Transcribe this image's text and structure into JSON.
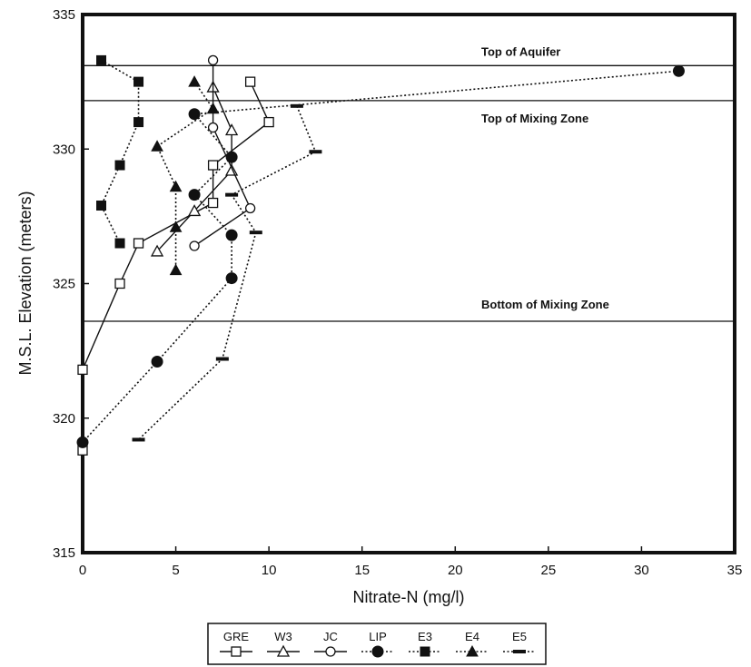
{
  "chart_data": {
    "type": "scatter",
    "title": "",
    "xlabel": "Nitrate-N (mg/l)",
    "ylabel": "M.S.L. Elevation (meters)",
    "xlim": [
      0,
      35
    ],
    "ylim": [
      315,
      335
    ],
    "xticks": [
      "0",
      "5",
      "10",
      "15",
      "20",
      "25",
      "30",
      "35"
    ],
    "yticks": [
      "315",
      "320",
      "325",
      "330",
      "335"
    ],
    "grid": false,
    "legend_position": "bottom-center",
    "reference_lines": [
      {
        "label": "Top of Aquifer",
        "y": 333.1
      },
      {
        "label": "Top of Mixing Zone",
        "y": 331.8
      },
      {
        "label": "Bottom of Mixing Zone",
        "y": 323.6
      }
    ],
    "series": [
      {
        "name": "GRE",
        "marker": "open-square",
        "line": "solid",
        "points": [
          [
            9,
            332.5
          ],
          [
            10,
            331.0
          ],
          [
            7,
            329.4
          ],
          [
            7,
            328.0
          ],
          [
            3,
            326.5
          ],
          [
            2,
            325.0
          ],
          [
            0,
            321.8
          ],
          [
            0,
            318.8
          ]
        ]
      },
      {
        "name": "W3",
        "marker": "open-triangle",
        "line": "solid",
        "points": [
          [
            7,
            332.3
          ],
          [
            8,
            330.7
          ],
          [
            8,
            329.2
          ],
          [
            6,
            327.7
          ],
          [
            4,
            326.2
          ]
        ]
      },
      {
        "name": "JC",
        "marker": "open-circle",
        "line": "solid",
        "points": [
          [
            7,
            333.3
          ],
          [
            7,
            330.8
          ],
          [
            9,
            327.8
          ],
          [
            6,
            326.4
          ]
        ]
      },
      {
        "name": "LIP",
        "marker": "filled-circle",
        "line": "dotted",
        "points": [
          [
            32,
            332.9
          ],
          [
            6,
            331.3
          ],
          [
            8,
            329.7
          ],
          [
            6,
            328.3
          ],
          [
            8,
            326.8
          ],
          [
            8,
            325.2
          ],
          [
            4,
            322.1
          ],
          [
            0,
            319.1
          ]
        ]
      },
      {
        "name": "E3",
        "marker": "filled-square",
        "line": "dotted",
        "points": [
          [
            1,
            333.3
          ],
          [
            3,
            332.5
          ],
          [
            3,
            331.0
          ],
          [
            2,
            329.4
          ],
          [
            1,
            327.9
          ],
          [
            2,
            326.5
          ]
        ]
      },
      {
        "name": "E4",
        "marker": "filled-triangle",
        "line": "dotted",
        "points": [
          [
            6,
            332.5
          ],
          [
            7,
            331.5
          ],
          [
            4,
            330.1
          ],
          [
            5,
            328.6
          ],
          [
            5,
            327.1
          ],
          [
            5,
            325.5
          ]
        ]
      },
      {
        "name": "E5",
        "marker": "dash",
        "line": "dotted",
        "points": [
          [
            11.5,
            331.6
          ],
          [
            12.5,
            329.9
          ],
          [
            8,
            328.3
          ],
          [
            9.3,
            326.9
          ],
          [
            7.5,
            322.2
          ],
          [
            3,
            319.2
          ]
        ]
      }
    ]
  }
}
